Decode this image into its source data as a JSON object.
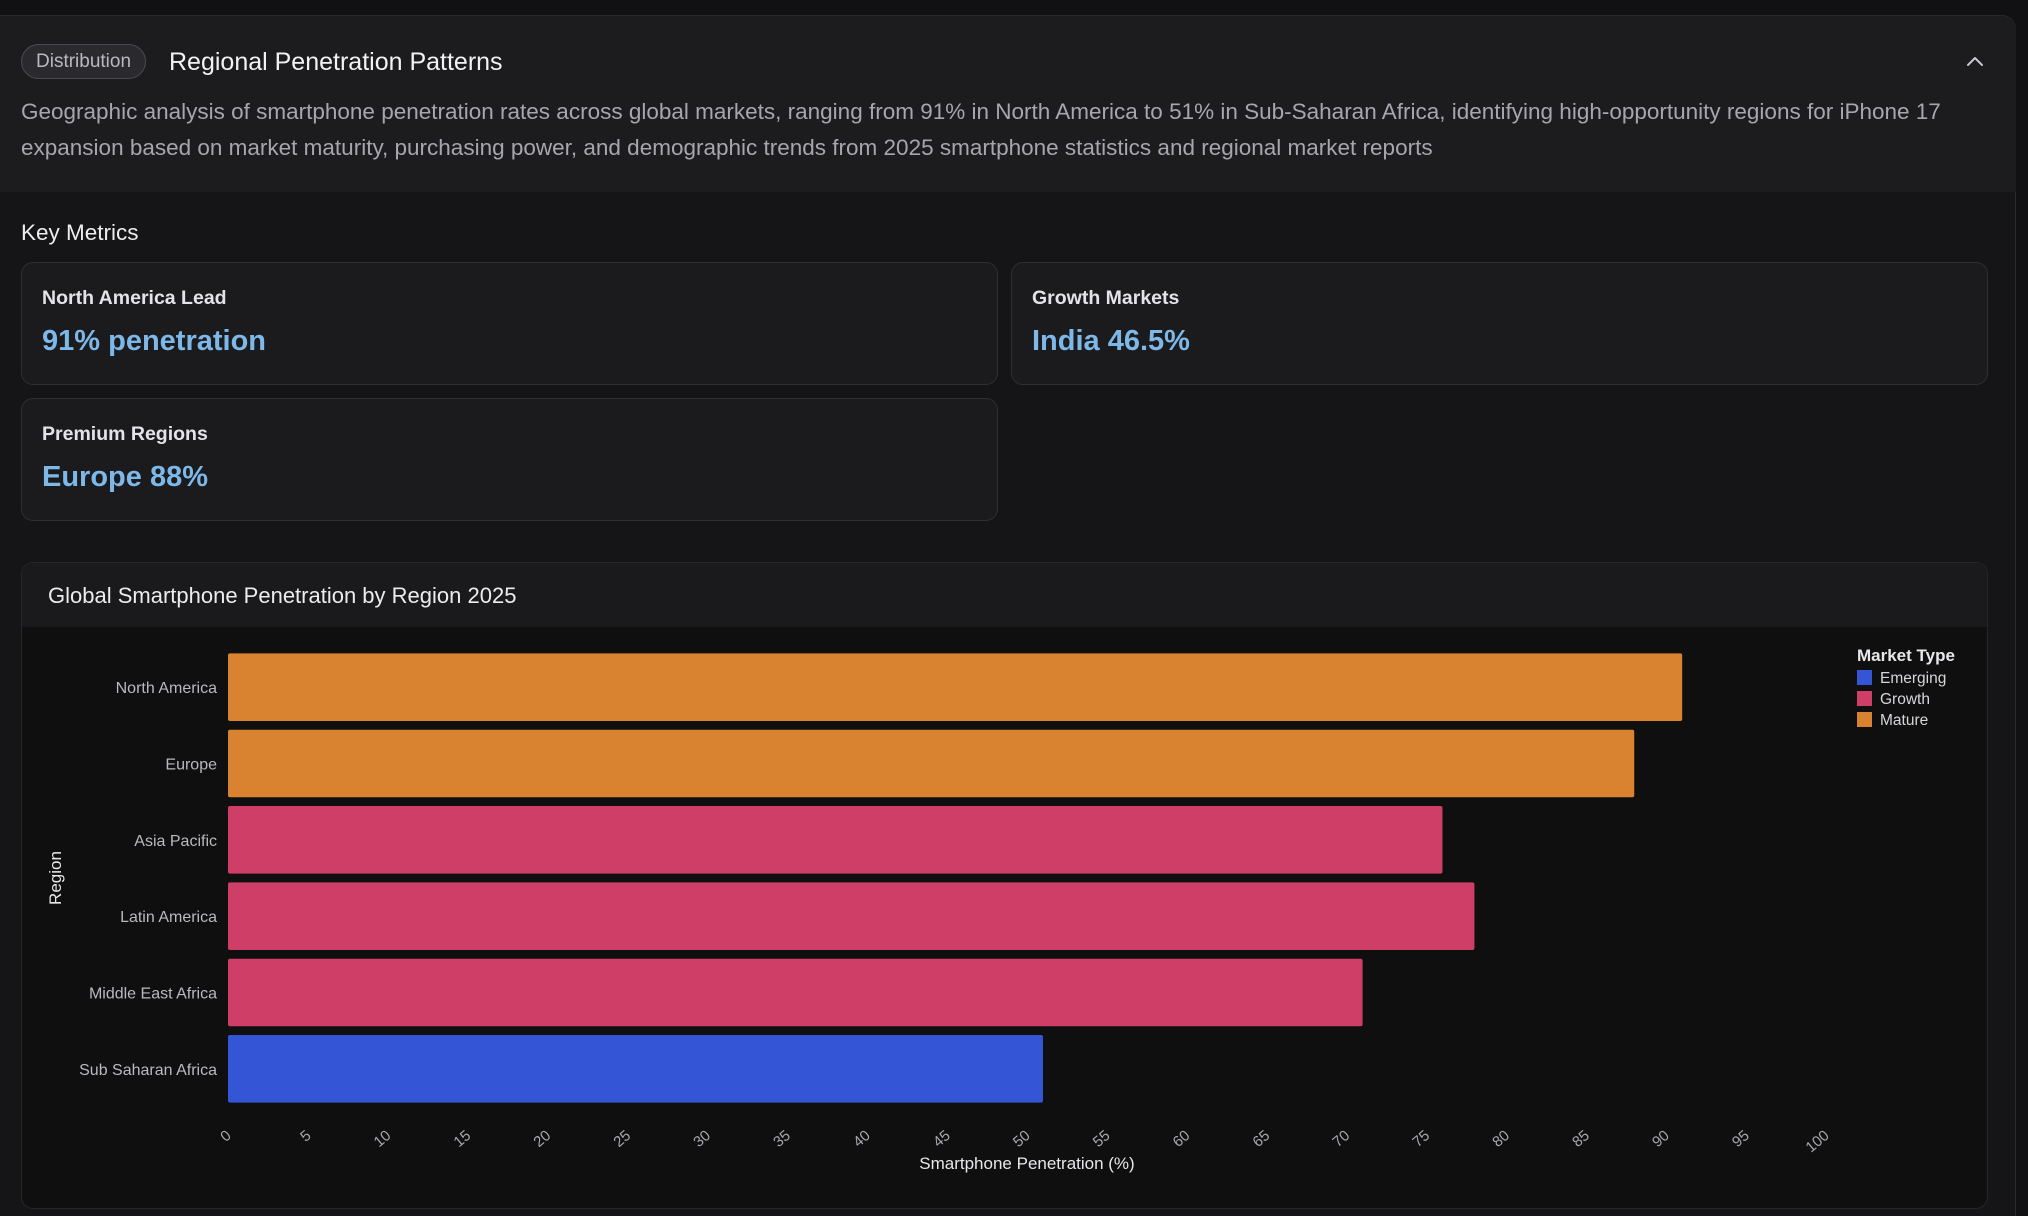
{
  "header": {
    "badge": "Distribution",
    "title": "Regional Penetration Patterns",
    "description": "Geographic analysis of smartphone penetration rates across global markets, ranging from 91% in North America to 51% in Sub-Saharan Africa, identifying high-opportunity regions for iPhone 17 expansion based on market maturity, purchasing power, and demographic trends from 2025 smartphone statistics and regional market reports",
    "collapse_icon": "chevron-up-icon"
  },
  "key_metrics": {
    "title": "Key Metrics",
    "cards": [
      {
        "label": "North America Lead",
        "value": "91% penetration"
      },
      {
        "label": "Growth Markets",
        "value": "India 46.5%"
      },
      {
        "label": "Premium Regions",
        "value": "Europe 88%"
      }
    ]
  },
  "chart_data": {
    "type": "bar",
    "orientation": "horizontal",
    "title": "Global Smartphone Penetration by Region 2025",
    "xlabel": "Smartphone Penetration (%)",
    "ylabel": "Region",
    "xlim": [
      0,
      100
    ],
    "xticks": [
      0,
      5,
      10,
      15,
      20,
      25,
      30,
      35,
      40,
      45,
      50,
      55,
      60,
      65,
      70,
      75,
      80,
      85,
      90,
      95,
      100
    ],
    "categories": [
      "North America",
      "Europe",
      "Asia Pacific",
      "Latin America",
      "Middle East Africa",
      "Sub Saharan Africa"
    ],
    "values": [
      91,
      88,
      76,
      78,
      71,
      51
    ],
    "market_type": [
      "Mature",
      "Mature",
      "Growth",
      "Growth",
      "Growth",
      "Emerging"
    ],
    "legend": {
      "title": "Market Type",
      "placement": "top-right",
      "items": [
        {
          "name": "Emerging",
          "color": "#3355d6"
        },
        {
          "name": "Growth",
          "color": "#cf3e66"
        },
        {
          "name": "Mature",
          "color": "#d9822f"
        }
      ]
    },
    "grid": false
  }
}
